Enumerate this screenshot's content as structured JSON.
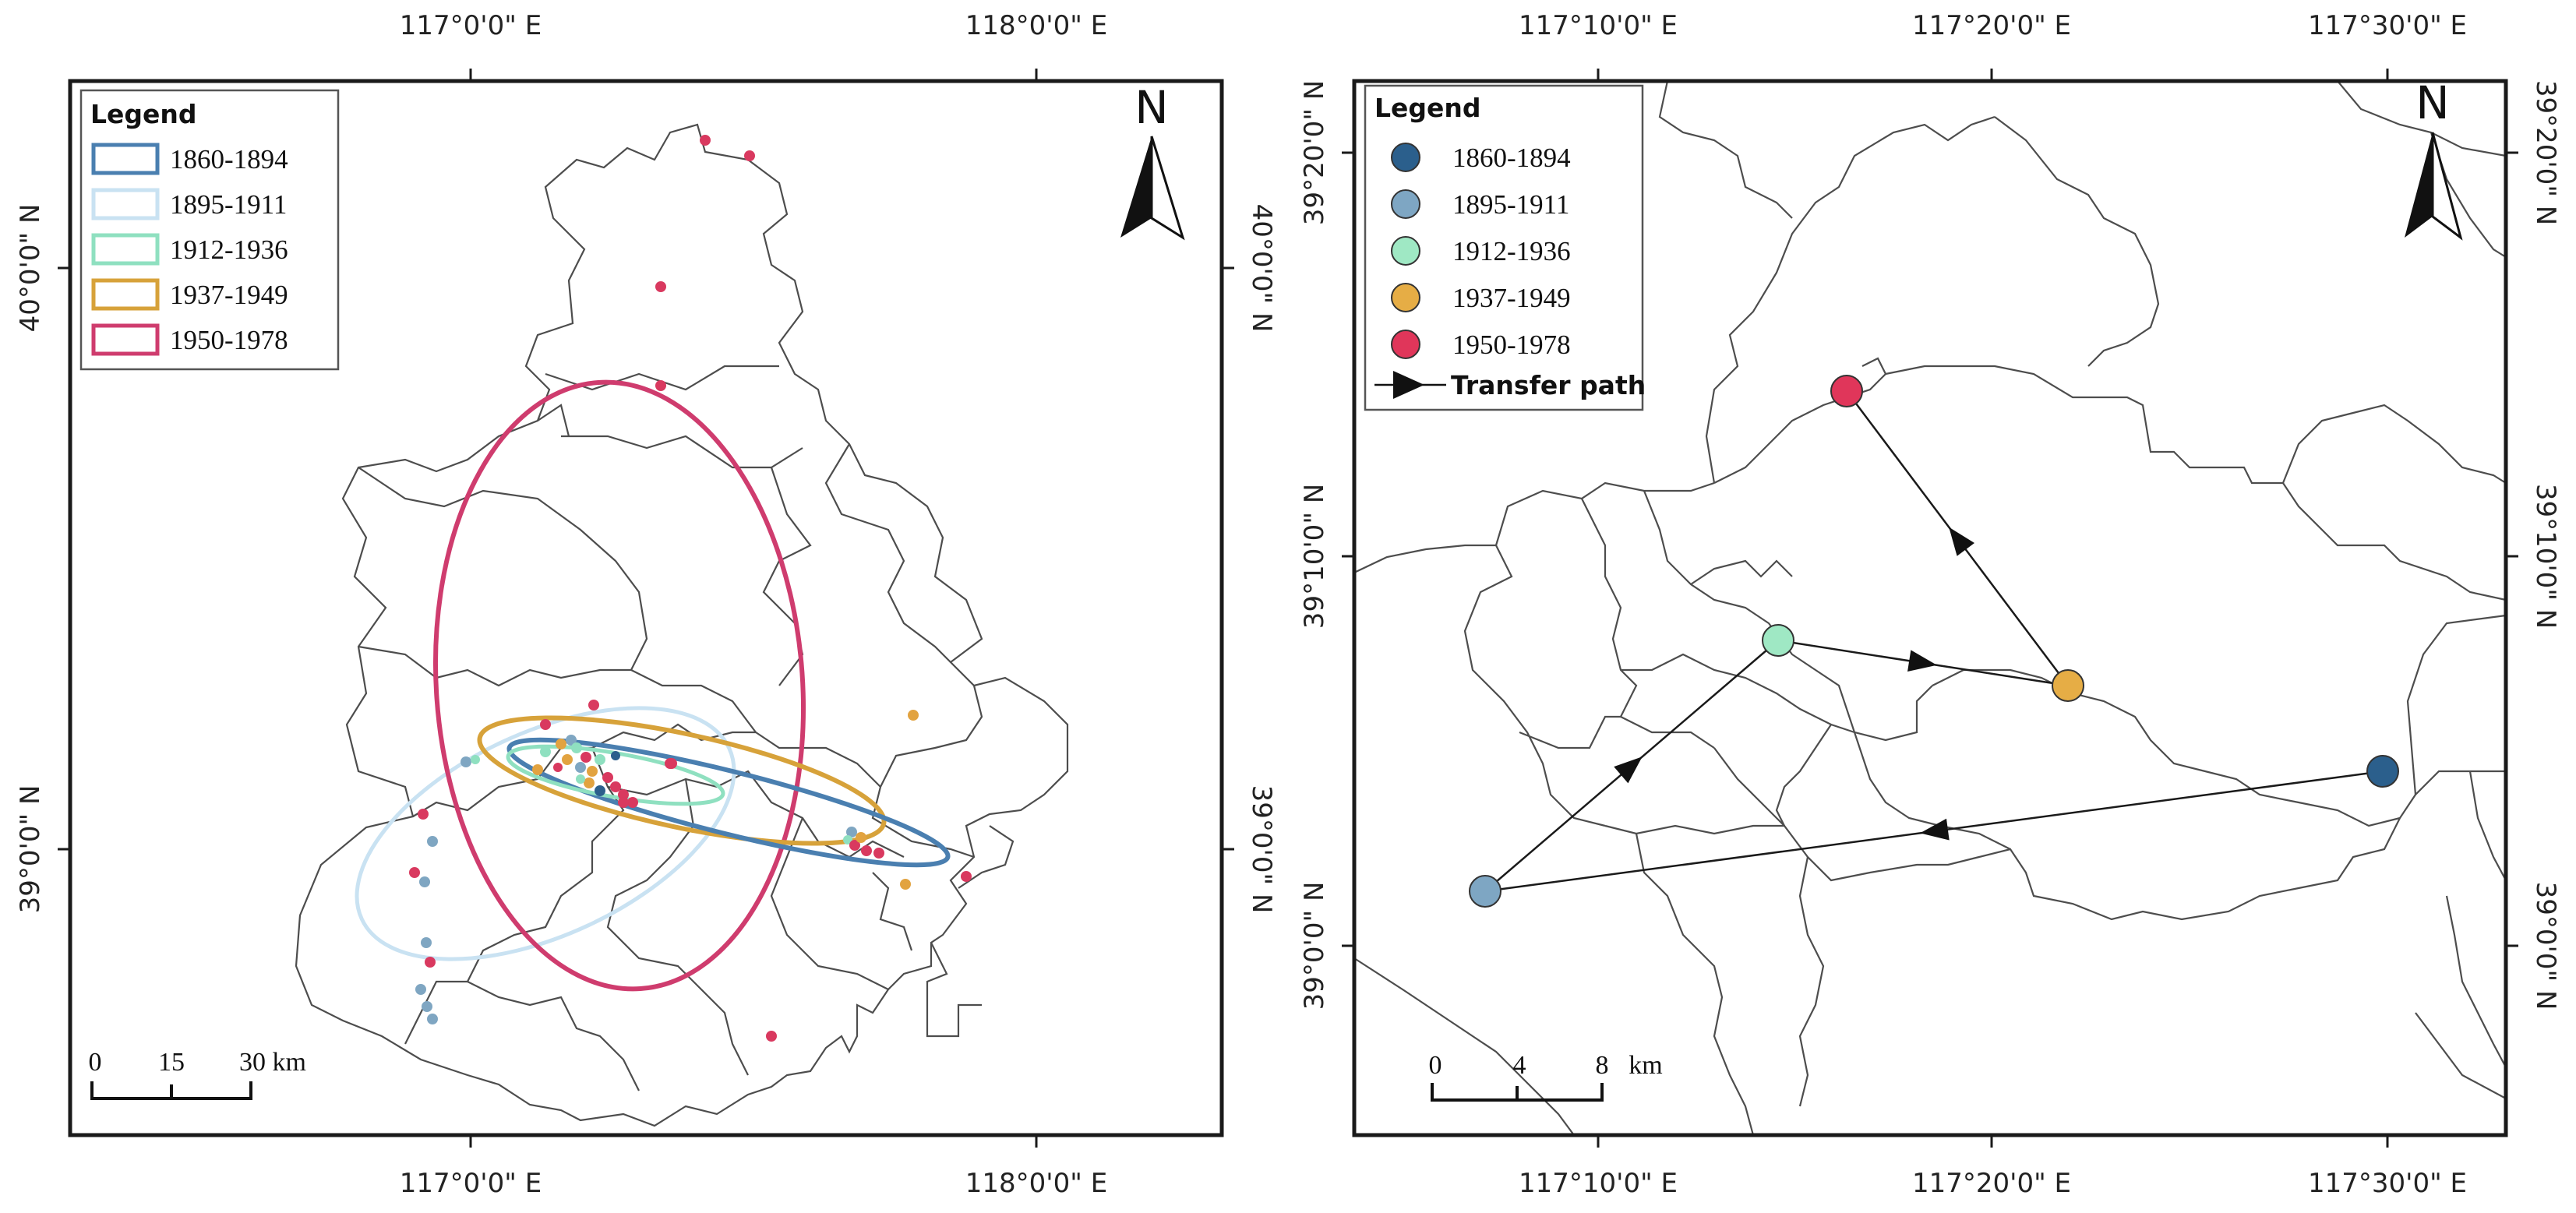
{
  "left_map": {
    "top_ticks": [
      "117°0'0\" E",
      "118°0'0\" E"
    ],
    "bottom_ticks": [
      "117°0'0\" E",
      "118°0'0\" E"
    ],
    "left_ticks": [
      "40°0'0\" N",
      "39°0'0\" N"
    ],
    "right_ticks": [
      "40°0'0\" N",
      "39°0'0\" N"
    ],
    "legend": {
      "title": "Legend",
      "items": [
        {
          "label": "1860-1894",
          "color": "#4a7fb0"
        },
        {
          "label": "1895-1911",
          "color": "#c9e2f2"
        },
        {
          "label": "1912-1936",
          "color": "#8fe0c0"
        },
        {
          "label": "1937-1949",
          "color": "#d7a23a"
        },
        {
          "label": "1950-1978",
          "color": "#cf3c6e"
        }
      ]
    },
    "north_label": "N",
    "scale_bar": {
      "labels": [
        "0",
        "15",
        "30 km"
      ]
    }
  },
  "right_map": {
    "top_ticks": [
      "117°10'0\" E",
      "117°20'0\" E",
      "117°30'0\" E"
    ],
    "bottom_ticks": [
      "117°10'0\" E",
      "117°20'0\" E",
      "117°30'0\" E"
    ],
    "left_ticks": [
      "39°20'0\" N",
      "39°10'0\" N",
      "39°0'0\" N"
    ],
    "right_ticks": [
      "39°20'0\" N",
      "39°10'0\" N",
      "39°0'0\" N"
    ],
    "legend": {
      "title": "Legend",
      "items": [
        {
          "label": "1860-1894",
          "color": "#2b5f8c"
        },
        {
          "label": "1895-1911",
          "color": "#7ea6c3"
        },
        {
          "label": "1912-1936",
          "color": "#9fe8c4"
        },
        {
          "label": "1937-1949",
          "color": "#e6ad45"
        },
        {
          "label": "1950-1978",
          "color": "#e0365a"
        }
      ],
      "path_label": "Transfer path"
    },
    "north_label": "N",
    "scale_bar": {
      "labels": [
        "0",
        "4",
        "8",
        "km"
      ]
    }
  }
}
